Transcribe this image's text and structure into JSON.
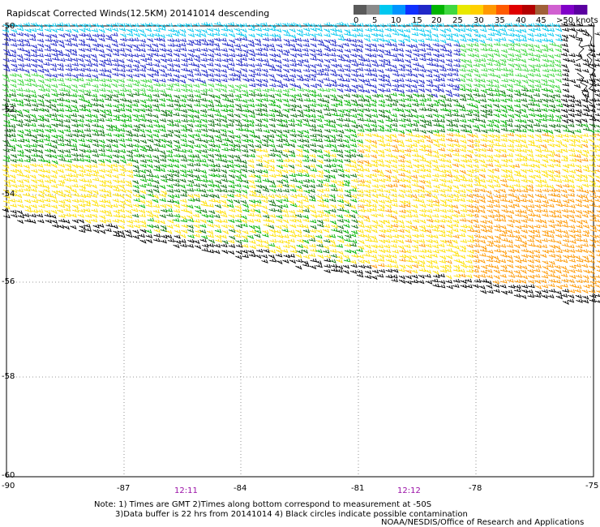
{
  "header": {
    "title": "Rapidscat Corrected Winds(12.5KM) 20141014 descending"
  },
  "legend": {
    "swatches": [
      "#5a5a5a",
      "#8a8a8a",
      "#00c8f0",
      "#0094ff",
      "#1030ff",
      "#2028c8",
      "#00b400",
      "#40d840",
      "#e8e800",
      "#ffd000",
      "#ff9800",
      "#ff5a00",
      "#e00000",
      "#b40000",
      "#a06038",
      "#d060d0",
      "#8000c8",
      "#5a00a0"
    ],
    "labels": [
      "0",
      "5",
      "10",
      "15",
      "20",
      "25",
      "30",
      "35",
      "40",
      "45",
      ">50 knots"
    ]
  },
  "axes": {
    "lat_labels": [
      "-50",
      "-52",
      "-54",
      "-56",
      "-58",
      "-60"
    ],
    "lon_labels": [
      "-90",
      "-87",
      "-84",
      "-81",
      "-78",
      "-75"
    ]
  },
  "times": [
    "12:11",
    "12:12"
  ],
  "footer": {
    "note_line1": "Note: 1) Times are GMT 2)Times along bottom correspond to measurement at -50S",
    "note_line2": "3)Data buffer is 22 hrs from 20141014 4) Black circles indicate possible contamination",
    "credit": "NOAA/NESDIS/Office of Research and Applications"
  },
  "colors": {
    "cyan": "#00c8f0",
    "blue": "#2028c8",
    "light_green": "#40d840",
    "green": "#00b400",
    "dark_green": "#0a6e0a",
    "yellow": "#ffe000",
    "orange": "#ff9800",
    "contaminated": "#000000",
    "timestamp": "#9a0fa6"
  }
}
